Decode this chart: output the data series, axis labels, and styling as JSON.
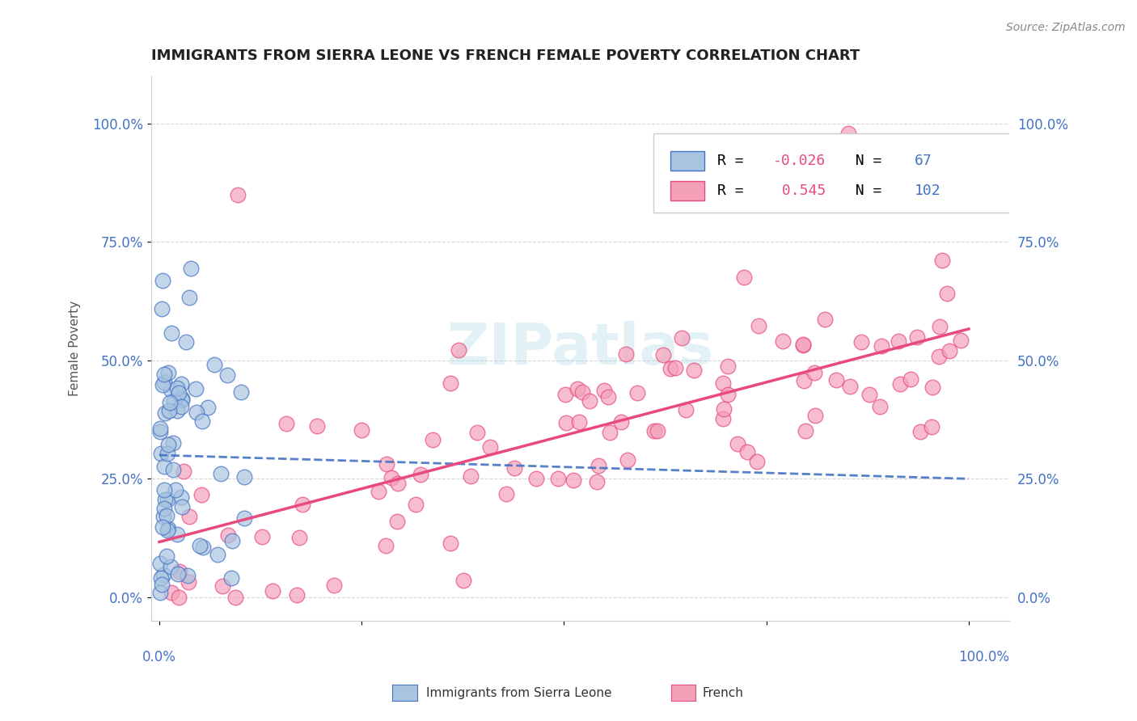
{
  "title": "IMMIGRANTS FROM SIERRA LEONE VS FRENCH FEMALE POVERTY CORRELATION CHART",
  "source": "Source: ZipAtlas.com",
  "ylabel": "Female Poverty",
  "y_ticks": [
    "0.0%",
    "25.0%",
    "50.0%",
    "75.0%",
    "100.0%"
  ],
  "y_tick_vals": [
    0.0,
    0.25,
    0.5,
    0.75,
    1.0
  ],
  "blue_R": -0.026,
  "blue_N": 67,
  "pink_R": 0.545,
  "pink_N": 102,
  "blue_color": "#a8c4e0",
  "pink_color": "#f4a0b8",
  "blue_line_color": "#4472c4",
  "pink_line_color": "#e84a7f",
  "legend_label_blue": "Immigrants from Sierra Leone",
  "legend_label_pink": "French",
  "background_color": "#ffffff",
  "grid_color": "#cccccc"
}
